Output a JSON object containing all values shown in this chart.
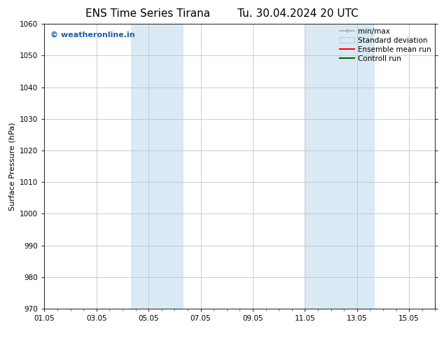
{
  "title_left": "ENS Time Series Tirana",
  "title_right": "Tu. 30.04.2024 20 UTC",
  "ylabel": "Surface Pressure (hPa)",
  "ylim": [
    970,
    1060
  ],
  "yticks": [
    970,
    980,
    990,
    1000,
    1010,
    1020,
    1030,
    1040,
    1050,
    1060
  ],
  "xlim_start": 0,
  "xlim_end": 15,
  "xtick_positions": [
    0,
    2,
    4,
    6,
    8,
    10,
    12,
    14
  ],
  "xtick_labels": [
    "01.05",
    "03.05",
    "05.05",
    "07.05",
    "09.05",
    "11.05",
    "13.05",
    "15.05"
  ],
  "shaded_bands": [
    {
      "x_start": 3.33,
      "x_end": 5.33
    },
    {
      "x_start": 10.0,
      "x_end": 12.67
    }
  ],
  "shaded_color": "#daeaf5",
  "watermark_text": "© weatheronline.in",
  "watermark_color": "#1a5fa8",
  "bg_color": "#ffffff",
  "plot_bg_color": "#ffffff",
  "grid_color": "#bbbbbb",
  "title_fontsize": 11,
  "axis_label_fontsize": 8,
  "tick_fontsize": 7.5,
  "legend_fontsize": 7.5
}
